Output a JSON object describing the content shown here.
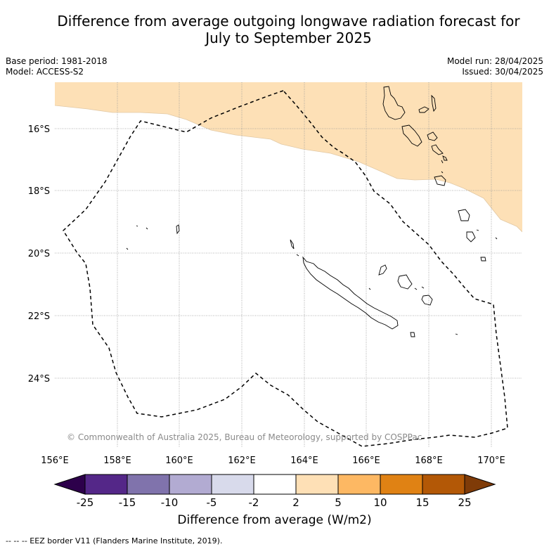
{
  "title": {
    "line1": "Difference from average outgoing longwave radiation forecast for",
    "line2": "July to September 2025"
  },
  "meta_left": {
    "base_period": "Base period: 1981-2018",
    "model": "Model: ACCESS-S2"
  },
  "meta_right": {
    "model_run": "Model run: 28/04/2025",
    "issued": "Issued: 30/04/2025"
  },
  "map": {
    "lat_labels": [
      "16°S",
      "18°S",
      "20°S",
      "22°S",
      "24°S"
    ],
    "lon_labels": [
      "156°E",
      "158°E",
      "160°E",
      "162°E",
      "164°E",
      "166°E",
      "168°E",
      "170°E"
    ],
    "copyright": "© Commonwealth of Australia 2025, Bureau of Meteorology, supported by COSPPac",
    "anomaly_shading": "2 to 5 W/m2",
    "colors": {
      "anomaly_fill": "#fde0b6",
      "grid": "#999999",
      "coast": "#000000",
      "eez": "#000000"
    }
  },
  "colorbar": {
    "tick_labels": [
      "-25",
      "-15",
      "-10",
      "-5",
      "-2",
      "2",
      "5",
      "10",
      "15",
      "25"
    ],
    "colors": [
      "#2d004b",
      "#542788",
      "#8073ac",
      "#b2abd2",
      "#d8daeb",
      "#ffffff",
      "#fee0b6",
      "#fdb863",
      "#e08214",
      "#b35806",
      "#7f3b08"
    ],
    "label": "Difference from average (W/m2)"
  },
  "footer": "--  --  -- EEZ border V11 (Flanders Marine Institute, 2019)."
}
